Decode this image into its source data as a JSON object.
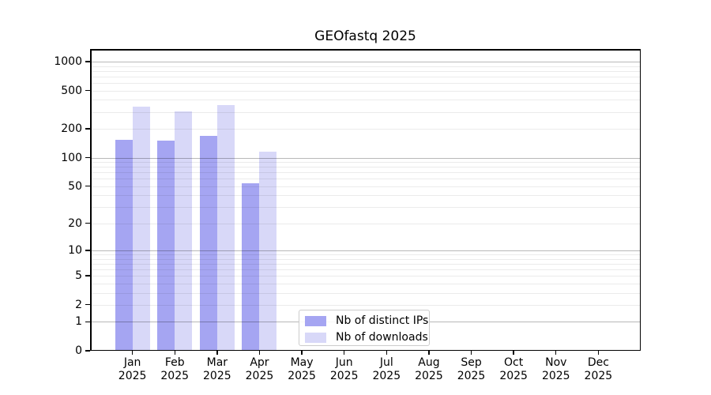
{
  "chart_data": {
    "type": "bar",
    "title": "GEOfastq 2025",
    "yscale": "log1p",
    "ylim": [
      0,
      1000
    ],
    "y_ticks": [
      0,
      1,
      2,
      5,
      10,
      20,
      50,
      100,
      200,
      500,
      1000
    ],
    "categories": [
      "Jan",
      "Feb",
      "Mar",
      "Apr",
      "May",
      "Jun",
      "Jul",
      "Aug",
      "Sep",
      "Oct",
      "Nov",
      "Dec"
    ],
    "year_label": "2025",
    "series": [
      {
        "name": "Nb of distinct IPs",
        "color": "#a5a5f2",
        "values": [
          153,
          152,
          170,
          54,
          0,
          0,
          0,
          0,
          0,
          0,
          0,
          0
        ]
      },
      {
        "name": "Nb of downloads",
        "color": "#d8d8f8",
        "values": [
          340,
          305,
          353,
          115,
          0,
          0,
          0,
          0,
          0,
          0,
          0,
          0
        ]
      }
    ],
    "grid": true,
    "legend_position": "lower center-left",
    "colors": {
      "major_grid": "rgba(0,0,0,0.28)",
      "minor_grid": "rgba(0,0,0,0.08)",
      "axis": "#000000",
      "text": "#000000",
      "background": "#ffffff"
    }
  }
}
